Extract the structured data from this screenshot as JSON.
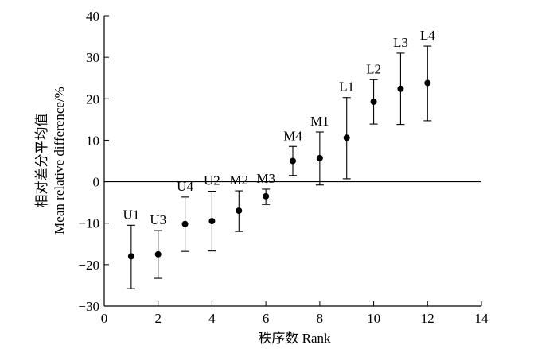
{
  "chart_data": {
    "type": "scatter",
    "xlabel": "秩序数 Rank",
    "ylabel_line1": "相对差分平均值",
    "ylabel_line2": "Mean relative difference/%",
    "xlim": [
      0,
      14
    ],
    "ylim": [
      -30,
      40
    ],
    "x_ticks": [
      0,
      2,
      4,
      6,
      8,
      10,
      12,
      14
    ],
    "y_ticks": [
      -30,
      -20,
      -10,
      0,
      10,
      20,
      30,
      40
    ],
    "reference_line_y": 0,
    "points": [
      {
        "x": 1,
        "y": -18.0,
        "lower": -25.8,
        "upper": -10.5,
        "label": "U1"
      },
      {
        "x": 2,
        "y": -17.5,
        "lower": -23.3,
        "upper": -11.8,
        "label": "U3"
      },
      {
        "x": 3,
        "y": -10.2,
        "lower": -16.8,
        "upper": -3.7,
        "label": "U4"
      },
      {
        "x": 4,
        "y": -9.5,
        "lower": -16.7,
        "upper": -2.3,
        "label": "U2"
      },
      {
        "x": 5,
        "y": -7.0,
        "lower": -12.0,
        "upper": -2.2,
        "label": "M2"
      },
      {
        "x": 6,
        "y": -3.5,
        "lower": -5.5,
        "upper": -1.8,
        "label": "M3"
      },
      {
        "x": 7,
        "y": 5.0,
        "lower": 1.5,
        "upper": 8.5,
        "label": "M4"
      },
      {
        "x": 8,
        "y": 5.7,
        "lower": -0.8,
        "upper": 12.0,
        "label": "M1"
      },
      {
        "x": 9,
        "y": 10.6,
        "lower": 0.7,
        "upper": 20.3,
        "label": "L1"
      },
      {
        "x": 10,
        "y": 19.3,
        "lower": 13.9,
        "upper": 24.6,
        "label": "L2"
      },
      {
        "x": 11,
        "y": 22.4,
        "lower": 13.8,
        "upper": 31.0,
        "label": "L3"
      },
      {
        "x": 12,
        "y": 23.8,
        "lower": 14.7,
        "upper": 32.7,
        "label": "L4"
      }
    ]
  }
}
